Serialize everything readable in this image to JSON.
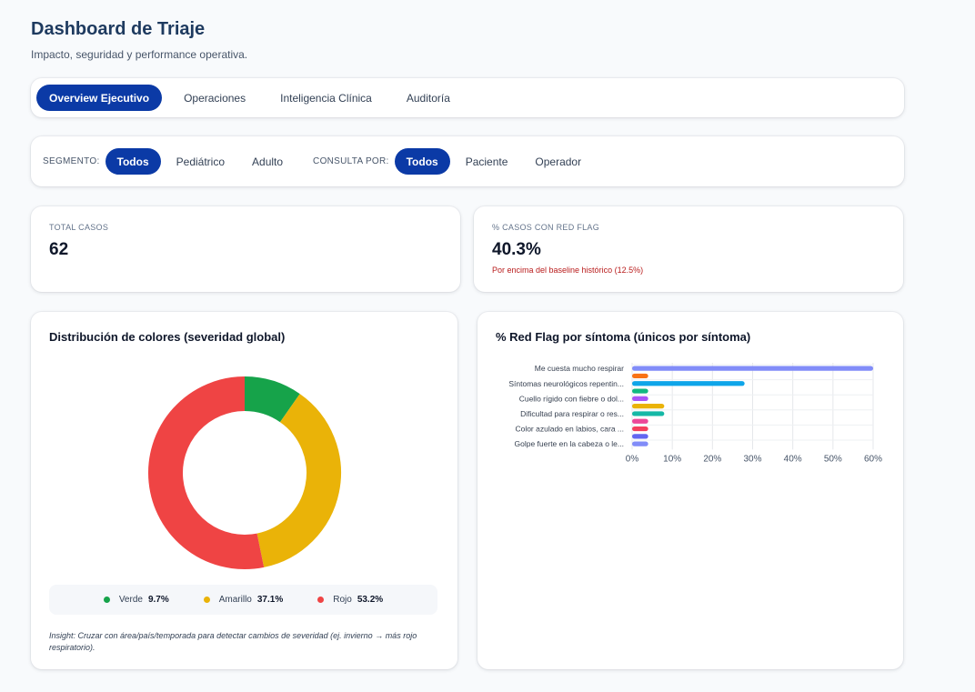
{
  "header": {
    "title": "Dashboard de Triaje",
    "subtitle": "Impacto, seguridad y performance operativa."
  },
  "tabs": [
    {
      "label": "Overview Ejecutivo",
      "active": true
    },
    {
      "label": "Operaciones",
      "active": false
    },
    {
      "label": "Inteligencia Clínica",
      "active": false
    },
    {
      "label": "Auditoría",
      "active": false
    }
  ],
  "filters": {
    "segmento_label": "SEGMENTO:",
    "segmento_options": [
      {
        "label": "Todos",
        "active": true
      },
      {
        "label": "Pediátrico",
        "active": false
      },
      {
        "label": "Adulto",
        "active": false
      }
    ],
    "consulta_label": "CONSULTA POR:",
    "consulta_options": [
      {
        "label": "Todos",
        "active": true
      },
      {
        "label": "Paciente",
        "active": false
      },
      {
        "label": "Operador",
        "active": false
      }
    ]
  },
  "kpis": {
    "total": {
      "label": "TOTAL CASOS",
      "value": "62"
    },
    "red_flag": {
      "label": "% CASOS CON RED FLAG",
      "value": "40.3%",
      "note": "Por encima del baseline histórico (12.5%)"
    }
  },
  "donut_panel": {
    "title": "Distribución de colores (severidad global)",
    "insight": "Insight: Cruzar con área/país/temporada para detectar cambios de severidad (ej. invierno → más rojo respiratorio)."
  },
  "bar_panel": {
    "title": "% Red Flag por síntoma (únicos por síntoma)"
  },
  "chart_data": [
    {
      "type": "pie",
      "title": "Distribución de colores (severidad global)",
      "donut": true,
      "slices": [
        {
          "label": "Verde",
          "pct_label": "9.7%",
          "value": 9.7,
          "color": "#16a34a"
        },
        {
          "label": "Amarillo",
          "pct_label": "37.1%",
          "value": 37.1,
          "color": "#eab308"
        },
        {
          "label": "Rojo",
          "pct_label": "53.2%",
          "value": 53.2,
          "color": "#ef4444"
        }
      ],
      "legend_position": "bottom"
    },
    {
      "type": "bar",
      "orientation": "horizontal",
      "title": "% Red Flag por síntoma (únicos por síntoma)",
      "x_ticks": [
        "0%",
        "10%",
        "20%",
        "30%",
        "40%",
        "50%",
        "60%"
      ],
      "xlim": [
        0,
        60
      ],
      "grid": true,
      "category_labels": [
        {
          "slot": 0,
          "label": "Me cuesta mucho respirar"
        },
        {
          "slot": 2,
          "label": "Síntomas neurológicos repentin..."
        },
        {
          "slot": 4,
          "label": "Cuello rígido con fiebre o dol..."
        },
        {
          "slot": 6,
          "label": "Dificultad para respirar o res..."
        },
        {
          "slot": 8,
          "label": "Color azulado en labios, cara ..."
        },
        {
          "slot": 10,
          "label": "Golpe fuerte en la cabeza o le..."
        }
      ],
      "bars": [
        {
          "value": 60,
          "color": "#818cf8"
        },
        {
          "value": 4,
          "color": "#f97316"
        },
        {
          "value": 28,
          "color": "#0ea5e9"
        },
        {
          "value": 4,
          "color": "#10b981"
        },
        {
          "value": 4,
          "color": "#a855f7"
        },
        {
          "value": 8,
          "color": "#eab308"
        },
        {
          "value": 8,
          "color": "#14b8a6"
        },
        {
          "value": 4,
          "color": "#ec4899"
        },
        {
          "value": 4,
          "color": "#f43f5e"
        },
        {
          "value": 4,
          "color": "#6366f1"
        },
        {
          "value": 4,
          "color": "#818cf8"
        }
      ]
    }
  ]
}
